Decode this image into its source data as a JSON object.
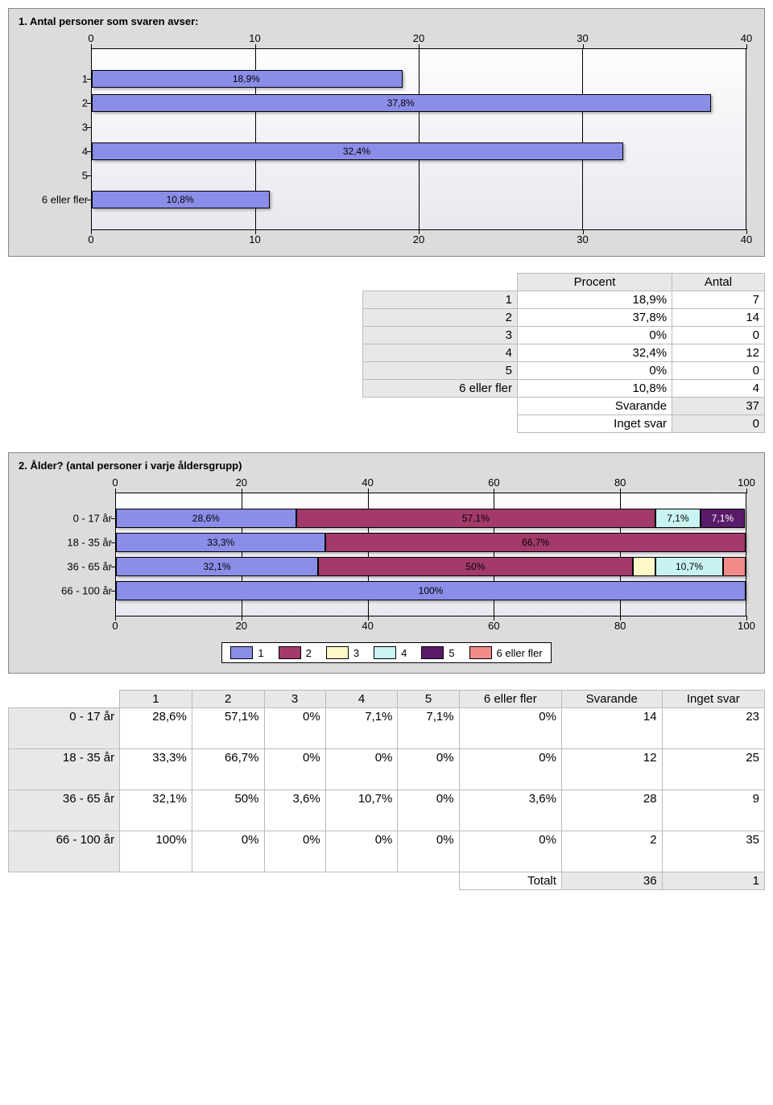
{
  "palette": {
    "series": [
      "#8a8ee8",
      "#a33a6b",
      "#fdf9c9",
      "#c9f2f2",
      "#5a1a6a",
      "#f28a8a"
    ],
    "bar_single": "#8a8ee8",
    "panel_bg": "#dcdcdc",
    "plot_bg_top": "#fdfdfd",
    "plot_bg_bottom": "#e8e8f0",
    "grid": "#000000",
    "border": "#888888"
  },
  "chart1": {
    "title": "1. Antal personer som svaren avser:",
    "xmin": 0,
    "xmax": 40,
    "xticks": [
      0,
      10,
      20,
      30,
      40
    ],
    "bar_color": "#8a8ee8",
    "rows": [
      {
        "label": "1",
        "value": 18.9,
        "text": "18,9%"
      },
      {
        "label": "2",
        "value": 37.8,
        "text": "37,8%"
      },
      {
        "label": "3",
        "value": 0,
        "text": ""
      },
      {
        "label": "4",
        "value": 32.4,
        "text": "32,4%"
      },
      {
        "label": "5",
        "value": 0,
        "text": ""
      },
      {
        "label": "6 eller fler",
        "value": 10.8,
        "text": "10,8%"
      }
    ]
  },
  "table1": {
    "headers": [
      "Procent",
      "Antal"
    ],
    "rows": [
      {
        "label": "1",
        "pct": "18,9%",
        "n": "7"
      },
      {
        "label": "2",
        "pct": "37,8%",
        "n": "14"
      },
      {
        "label": "3",
        "pct": "0%",
        "n": "0"
      },
      {
        "label": "4",
        "pct": "32,4%",
        "n": "12"
      },
      {
        "label": "5",
        "pct": "0%",
        "n": "0"
      },
      {
        "label": "6 eller fler",
        "pct": "10,8%",
        "n": "4"
      }
    ],
    "footer": [
      {
        "label": "Svarande",
        "n": "37"
      },
      {
        "label": "Inget svar",
        "n": "0"
      }
    ]
  },
  "chart2": {
    "title": "2. Ålder? (antal personer i varje åldersgrupp)",
    "xmin": 0,
    "xmax": 100,
    "xticks": [
      0,
      20,
      40,
      60,
      80,
      100
    ],
    "legend": [
      "1",
      "2",
      "3",
      "4",
      "5",
      "6 eller fler"
    ],
    "rows": [
      {
        "label": "0 - 17 år",
        "segs": [
          {
            "c": 0,
            "v": 28.6,
            "t": "28,6%"
          },
          {
            "c": 1,
            "v": 57.1,
            "t": "57,1%"
          },
          {
            "c": 3,
            "v": 7.1,
            "t": "7,1%"
          },
          {
            "c": 4,
            "v": 7.1,
            "t": "7,1%"
          }
        ]
      },
      {
        "label": "18 - 35 år",
        "segs": [
          {
            "c": 0,
            "v": 33.3,
            "t": "33,3%"
          },
          {
            "c": 1,
            "v": 66.7,
            "t": "66,7%"
          }
        ]
      },
      {
        "label": "36 - 65 år",
        "segs": [
          {
            "c": 0,
            "v": 32.1,
            "t": "32,1%"
          },
          {
            "c": 1,
            "v": 50.0,
            "t": "50%"
          },
          {
            "c": 2,
            "v": 3.6,
            "t": ""
          },
          {
            "c": 3,
            "v": 10.7,
            "t": "10,7%"
          },
          {
            "c": 5,
            "v": 3.6,
            "t": ""
          }
        ]
      },
      {
        "label": "66 - 100 år",
        "segs": [
          {
            "c": 0,
            "v": 100,
            "t": "100%"
          }
        ]
      }
    ]
  },
  "table2": {
    "col_headers": [
      "1",
      "2",
      "3",
      "4",
      "5",
      "6 eller fler",
      "Svarande",
      "Inget svar"
    ],
    "rows": [
      {
        "label": "0 - 17 år",
        "cells": [
          "28,6%",
          "57,1%",
          "0%",
          "7,1%",
          "7,1%",
          "0%",
          "14",
          "23"
        ]
      },
      {
        "label": "18 - 35 år",
        "cells": [
          "33,3%",
          "66,7%",
          "0%",
          "0%",
          "0%",
          "0%",
          "12",
          "25"
        ]
      },
      {
        "label": "36 - 65 år",
        "cells": [
          "32,1%",
          "50%",
          "3,6%",
          "10,7%",
          "0%",
          "3,6%",
          "28",
          "9"
        ]
      },
      {
        "label": "66 - 100 år",
        "cells": [
          "100%",
          "0%",
          "0%",
          "0%",
          "0%",
          "0%",
          "2",
          "35"
        ]
      }
    ],
    "total_label": "Totalt",
    "total_cells": [
      "36",
      "1"
    ]
  }
}
